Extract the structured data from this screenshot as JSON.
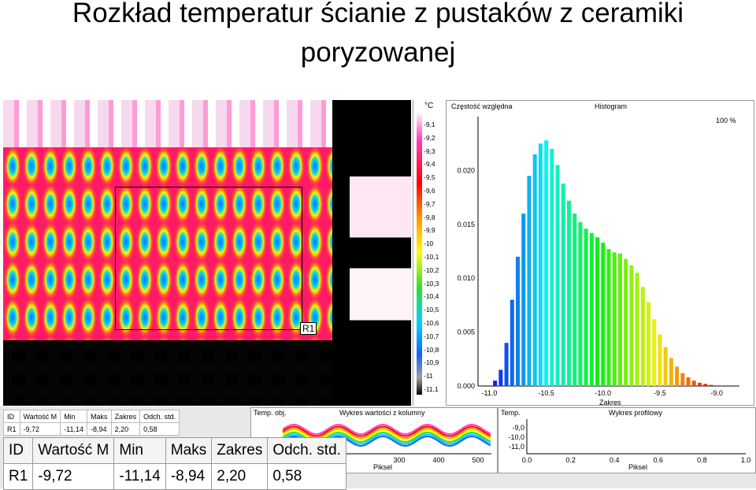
{
  "title_line1": "Rozkład temperatur ścianie z pustaków   z ceramiki",
  "title_line2": "poryzowanej",
  "thermogram": {
    "roi_label": "R1"
  },
  "scale": {
    "unit": "°C",
    "ticks": [
      "-9,1",
      "-9,2",
      "-9,3",
      "-9,4",
      "-9,5",
      "-9,6",
      "-9,7",
      "-9,8",
      "-9,9",
      "-10",
      "-10,1",
      "-10,2",
      "-10,3",
      "-10,4",
      "-10,5",
      "-10,6",
      "-10,7",
      "-10,8",
      "-10,9",
      "-11",
      "-11,1"
    ]
  },
  "histogram": {
    "ylabel": "Częstość względna",
    "title": "Histogram",
    "percent": "100 %",
    "xlabel": "Zakres",
    "yticks": [
      "0.020",
      "0.015",
      "0.010",
      "0.005",
      "0.000"
    ],
    "xticks": [
      "-11.0",
      "-10.5",
      "-10.0",
      "-9.5",
      "-9.0"
    ]
  },
  "chart_data": {
    "type": "bar",
    "title": "Histogram",
    "xlabel": "Zakres",
    "ylabel": "Częstość względna",
    "xlim": [
      -11.1,
      -8.8
    ],
    "ylim": [
      0,
      0.025
    ],
    "x": [
      -10.95,
      -10.9,
      -10.85,
      -10.8,
      -10.75,
      -10.7,
      -10.65,
      -10.6,
      -10.55,
      -10.5,
      -10.45,
      -10.4,
      -10.35,
      -10.3,
      -10.25,
      -10.2,
      -10.15,
      -10.1,
      -10.05,
      -10.0,
      -9.95,
      -9.9,
      -9.85,
      -9.8,
      -9.75,
      -9.7,
      -9.65,
      -9.6,
      -9.55,
      -9.5,
      -9.45,
      -9.4,
      -9.35,
      -9.3,
      -9.25,
      -9.2,
      -9.15,
      -9.1,
      -9.05
    ],
    "y": [
      0.0005,
      0.0015,
      0.004,
      0.008,
      0.012,
      0.016,
      0.0195,
      0.0215,
      0.0225,
      0.0228,
      0.022,
      0.0205,
      0.0188,
      0.0172,
      0.016,
      0.0152,
      0.0146,
      0.0142,
      0.0138,
      0.0133,
      0.0127,
      0.0124,
      0.0123,
      0.0118,
      0.0112,
      0.0105,
      0.0092,
      0.0078,
      0.0062,
      0.0048,
      0.0036,
      0.0026,
      0.0018,
      0.0012,
      0.0008,
      0.0005,
      0.0003,
      0.0002,
      0.0001
    ]
  },
  "small_table": {
    "headers": [
      "ID",
      "Wartość M",
      "Min",
      "Maks",
      "Zakres",
      "Odch. std."
    ],
    "row": [
      "R1",
      "-9,72",
      "-11,14",
      "-8,94",
      "2,20",
      "0,58"
    ]
  },
  "column_panel": {
    "label": "Temp. obj.",
    "title": "Wykres wartości z kolumny",
    "xticks": [
      "300",
      "400",
      "500"
    ],
    "xlabel": "Piksel"
  },
  "profile_panel": {
    "label": "Temp.",
    "title": "Wykres profilowy",
    "yticks": [
      "-9,0",
      "-10,0",
      "-11,0"
    ],
    "xticks": [
      "0.0",
      "0.2",
      "0.4",
      "0.6",
      "0.8",
      "1.0"
    ],
    "xlabel": "Piksel"
  },
  "big_table": {
    "headers": [
      "ID",
      "Wartość M",
      "Min",
      "Maks",
      "Zakres",
      "Odch. std."
    ],
    "row": [
      "R1",
      "-9,72",
      "-11,14",
      "-8,94",
      "2,20",
      "0,58"
    ]
  }
}
